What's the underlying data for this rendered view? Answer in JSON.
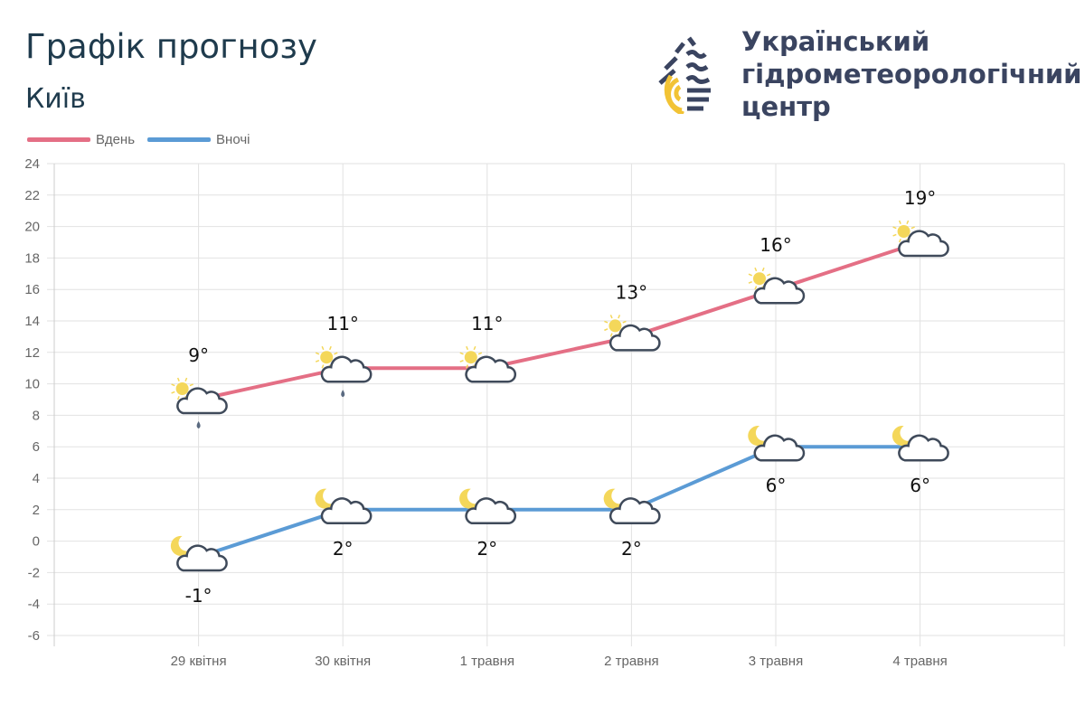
{
  "header": {
    "title": "Графік прогнозу",
    "city": "Київ"
  },
  "brand": {
    "line1": "Український",
    "line2": "гідрометеорологічний",
    "line3": "центр"
  },
  "colors": {
    "day": "#e46f85",
    "night": "#5b9bd5",
    "grid": "#e2e2e2"
  },
  "chart_data": {
    "type": "line",
    "categories": [
      "29 квітня",
      "30 квітня",
      "1 травня",
      "2 травня",
      "3 травня",
      "4 травня"
    ],
    "ylim": [
      -6,
      24
    ],
    "yticks": [
      -6,
      -4,
      -2,
      0,
      2,
      4,
      6,
      8,
      10,
      12,
      14,
      16,
      18,
      20,
      22,
      24
    ],
    "grid": true,
    "legend_position": "top-left",
    "series": [
      {
        "name": "Вдень",
        "values": [
          9,
          11,
          11,
          13,
          16,
          19
        ],
        "labels": [
          "9°",
          "11°",
          "11°",
          "13°",
          "16°",
          "19°"
        ],
        "icons": [
          "sun-cloud-rain",
          "sun-cloud-rain",
          "sun-cloud",
          "sun-cloud",
          "sun-cloud",
          "sun-cloud"
        ]
      },
      {
        "name": "Вночі",
        "values": [
          -1,
          2,
          2,
          2,
          6,
          6
        ],
        "labels": [
          "-1°",
          "2°",
          "2°",
          "2°",
          "6°",
          "6°"
        ],
        "icons": [
          "moon-cloud",
          "moon-cloud",
          "moon-cloud",
          "moon-cloud",
          "moon-cloud",
          "moon-cloud"
        ]
      }
    ]
  }
}
